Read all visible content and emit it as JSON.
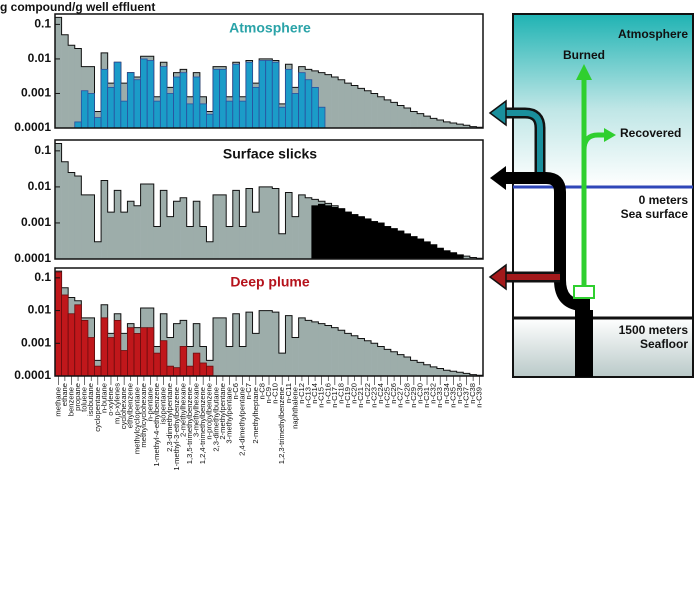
{
  "chart_data": {
    "type": "bar",
    "log": true,
    "ylabel": "g compound/g well effluent",
    "categories": [
      "methane",
      "ethane",
      "benzene",
      "propane",
      "toluene",
      "isobutane",
      "cyclopentane",
      "n-butane",
      "o-xylene",
      "m,p-xylenes",
      "cyclohexane",
      "ethylbenzene",
      "methylcyclopentane",
      "methylcyclohexane",
      "n-pentane",
      "1-methyl-4-ethylbenzene",
      "isopentane",
      "2,3-dimethylpentane",
      "1-methyl-3-ethylbenzene",
      "2-methylhexane",
      "1,3,5-trimethylbenzene",
      "3-methylhexane",
      "1,2,4-trimethylbenzene",
      "n-propylbenzene",
      "2,3-dimethylbutane",
      "2-methylpentane",
      "3-methylpentane",
      "n-C6",
      "2,4-dimethylpentane",
      "n-C7",
      "2-methylheptane",
      "n-C8",
      "n-C9",
      "n-C10",
      "1,2,3-trimethylbenzene",
      "n-C11",
      "naphthalene",
      "n-C12",
      "n-C13",
      "n-C14",
      "n-C15",
      "n-C16",
      "n-C17",
      "n-C18",
      "n-C19",
      "n-C20",
      "n-C21",
      "n-C22",
      "n-C23",
      "n-C24",
      "n-C25",
      "n-C26",
      "n-C27",
      "n-C28",
      "n-C29",
      "n-C30",
      "n-C31",
      "n-C32",
      "n-C33",
      "n-C34",
      "n-C35",
      "n-C36",
      "n-C37",
      "n-C38",
      "n-C39"
    ],
    "ylim": [
      0.0001,
      0.2
    ],
    "yticks": [
      0.0001,
      0.001,
      0.01,
      0.1
    ],
    "background": {
      "color": "#9dadaa",
      "values": [
        0.16,
        0.05,
        0.025,
        0.02,
        0.006,
        0.006,
        0.0003,
        0.015,
        0.002,
        0.008,
        0.002,
        0.004,
        0.003,
        0.012,
        0.012,
        0.0008,
        0.008,
        0.0015,
        0.004,
        0.005,
        0.0008,
        0.004,
        0.0008,
        0.0003,
        0.006,
        0.006,
        0.0008,
        0.008,
        0.0008,
        0.009,
        0.002,
        0.01,
        0.01,
        0.009,
        0.0005,
        0.007,
        0.0015,
        0.006,
        0.005,
        0.0045,
        0.004,
        0.0035,
        0.003,
        0.0025,
        0.002,
        0.0017,
        0.0014,
        0.0012,
        0.001,
        0.0008,
        0.00065,
        0.00055,
        0.00045,
        0.00038,
        0.0003,
        0.00026,
        0.00022,
        0.00019,
        0.00017,
        0.00015,
        0.00014,
        0.00013,
        0.00012,
        0.00011,
        0.000105
      ]
    },
    "panels": [
      {
        "title": "Atmosphere",
        "title_color": "#2aa3a8",
        "series": [
          {
            "color": "#1b9cc8",
            "stroke": "#2a4f9e",
            "values": [
              null,
              null,
              null,
              0.00015,
              0.0012,
              0.001,
              0.0002,
              0.005,
              0.0015,
              0.008,
              0.0006,
              0.004,
              0.0025,
              0.01,
              0.009,
              0.0006,
              0.006,
              0.001,
              0.003,
              0.004,
              0.0005,
              0.003,
              0.0005,
              0.00025,
              0.005,
              0.005,
              0.0006,
              0.007,
              0.0006,
              0.008,
              0.0015,
              0.009,
              0.009,
              0.008,
              0.0004,
              0.005,
              0.001,
              0.004,
              0.0025,
              0.0015,
              0.0004,
              null,
              null,
              null,
              null,
              null,
              null,
              null,
              null,
              null,
              null,
              null,
              null,
              null,
              null,
              null,
              null,
              null,
              null,
              null,
              null,
              null,
              null,
              null,
              null
            ]
          }
        ]
      },
      {
        "title": "Surface slicks",
        "title_color": "#111111",
        "series": [
          {
            "color": "#000000",
            "stroke": "#000000",
            "values": [
              null,
              null,
              null,
              null,
              null,
              null,
              null,
              null,
              null,
              null,
              null,
              null,
              null,
              null,
              null,
              null,
              null,
              null,
              null,
              null,
              null,
              null,
              null,
              null,
              null,
              null,
              null,
              null,
              null,
              null,
              null,
              null,
              null,
              null,
              null,
              null,
              null,
              null,
              null,
              0.003,
              0.0033,
              0.003,
              0.0027,
              0.0024,
              0.002,
              0.0017,
              0.0015,
              0.0013,
              0.0011,
              0.001,
              0.0008,
              0.0007,
              0.0006,
              0.0005,
              0.00042,
              0.00036,
              0.0003,
              0.00025,
              0.0002,
              0.00017,
              0.00015,
              0.00013,
              null,
              null,
              null
            ]
          }
        ]
      },
      {
        "title": "Deep plume",
        "title_color": "#b5121b",
        "series": [
          {
            "color": "#c0171b",
            "stroke": "#6b0c0e",
            "values": [
              0.15,
              0.03,
              0.008,
              0.015,
              0.005,
              0.0015,
              0.0002,
              0.006,
              0.0015,
              0.005,
              0.0006,
              0.003,
              0.002,
              0.003,
              0.003,
              0.0005,
              0.0012,
              0.0002,
              0.00018,
              0.0008,
              0.0002,
              0.0005,
              0.00025,
              0.0002,
              null,
              null,
              null,
              null,
              null,
              null,
              null,
              null,
              null,
              null,
              null,
              null,
              null,
              null,
              null,
              null,
              null,
              null,
              null,
              null,
              null,
              null,
              null,
              null,
              null,
              null,
              null,
              null,
              null,
              null,
              null,
              null,
              null,
              null,
              null,
              null,
              null,
              null,
              null,
              null,
              null
            ]
          }
        ]
      }
    ]
  },
  "diagram": {
    "atmosphere": "Atmosphere",
    "burned": "Burned",
    "recovered": "Recovered",
    "surface_depth": "0 meters",
    "surface": "Sea surface",
    "floor_depth": "1500 meters",
    "floor": "Seafloor"
  }
}
